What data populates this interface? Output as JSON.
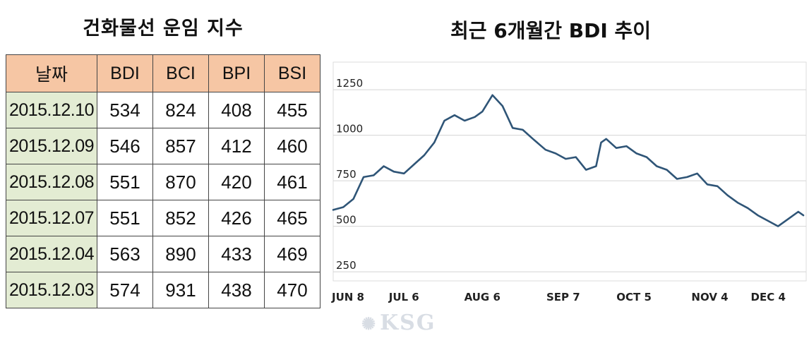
{
  "table": {
    "title": "건화물선 운임 지수",
    "headers": [
      "날짜",
      "BDI",
      "BCI",
      "BPI",
      "BSI"
    ],
    "rows": [
      [
        "2015.12.10",
        "534",
        "824",
        "408",
        "455"
      ],
      [
        "2015.12.09",
        "546",
        "857",
        "412",
        "460"
      ],
      [
        "2015.12.08",
        "551",
        "870",
        "420",
        "461"
      ],
      [
        "2015.12.07",
        "551",
        "852",
        "426",
        "465"
      ],
      [
        "2015.12.04",
        "563",
        "890",
        "433",
        "469"
      ],
      [
        "2015.12.03",
        "574",
        "931",
        "438",
        "470"
      ]
    ]
  },
  "chart_data": {
    "type": "line",
    "title": "최근 6개월간 BDI 추이",
    "xlabel": "",
    "ylabel": "",
    "ylim": [
      200,
      1400
    ],
    "yticks": [
      250,
      500,
      750,
      1000,
      1250
    ],
    "ytick_labels": [
      "250",
      "500",
      "750",
      "1000",
      "1250"
    ],
    "xticks": [
      "JUN 8",
      "JUL 6",
      "AUG 6",
      "SEP 7",
      "OCT 5",
      "NOV 4",
      "DEC 4"
    ],
    "xtick_days": [
      0,
      28,
      59,
      91,
      119,
      149,
      179
    ],
    "grid": true,
    "color": "#2f5577",
    "series": [
      {
        "x": [
          0,
          4,
          8,
          12,
          16,
          20,
          24,
          28,
          32,
          36,
          40,
          44,
          48,
          52,
          56,
          59,
          63,
          67,
          71,
          75,
          79,
          84,
          88,
          92,
          96,
          100,
          104,
          106,
          108,
          112,
          116,
          120,
          124,
          128,
          132,
          136,
          140,
          144,
          148,
          152,
          156,
          160,
          164,
          168,
          172,
          176,
          180,
          184,
          186
        ],
        "y": [
          590,
          605,
          650,
          770,
          780,
          830,
          800,
          790,
          840,
          890,
          960,
          1080,
          1110,
          1080,
          1100,
          1130,
          1220,
          1160,
          1040,
          1030,
          980,
          920,
          900,
          870,
          880,
          810,
          830,
          960,
          980,
          930,
          940,
          900,
          880,
          830,
          810,
          760,
          770,
          790,
          730,
          720,
          670,
          630,
          600,
          560,
          530,
          500,
          540,
          580,
          560
        ]
      }
    ]
  },
  "watermark": {
    "icon": "ship-wheel-icon",
    "glyph": "✺",
    "text": "KSG"
  }
}
